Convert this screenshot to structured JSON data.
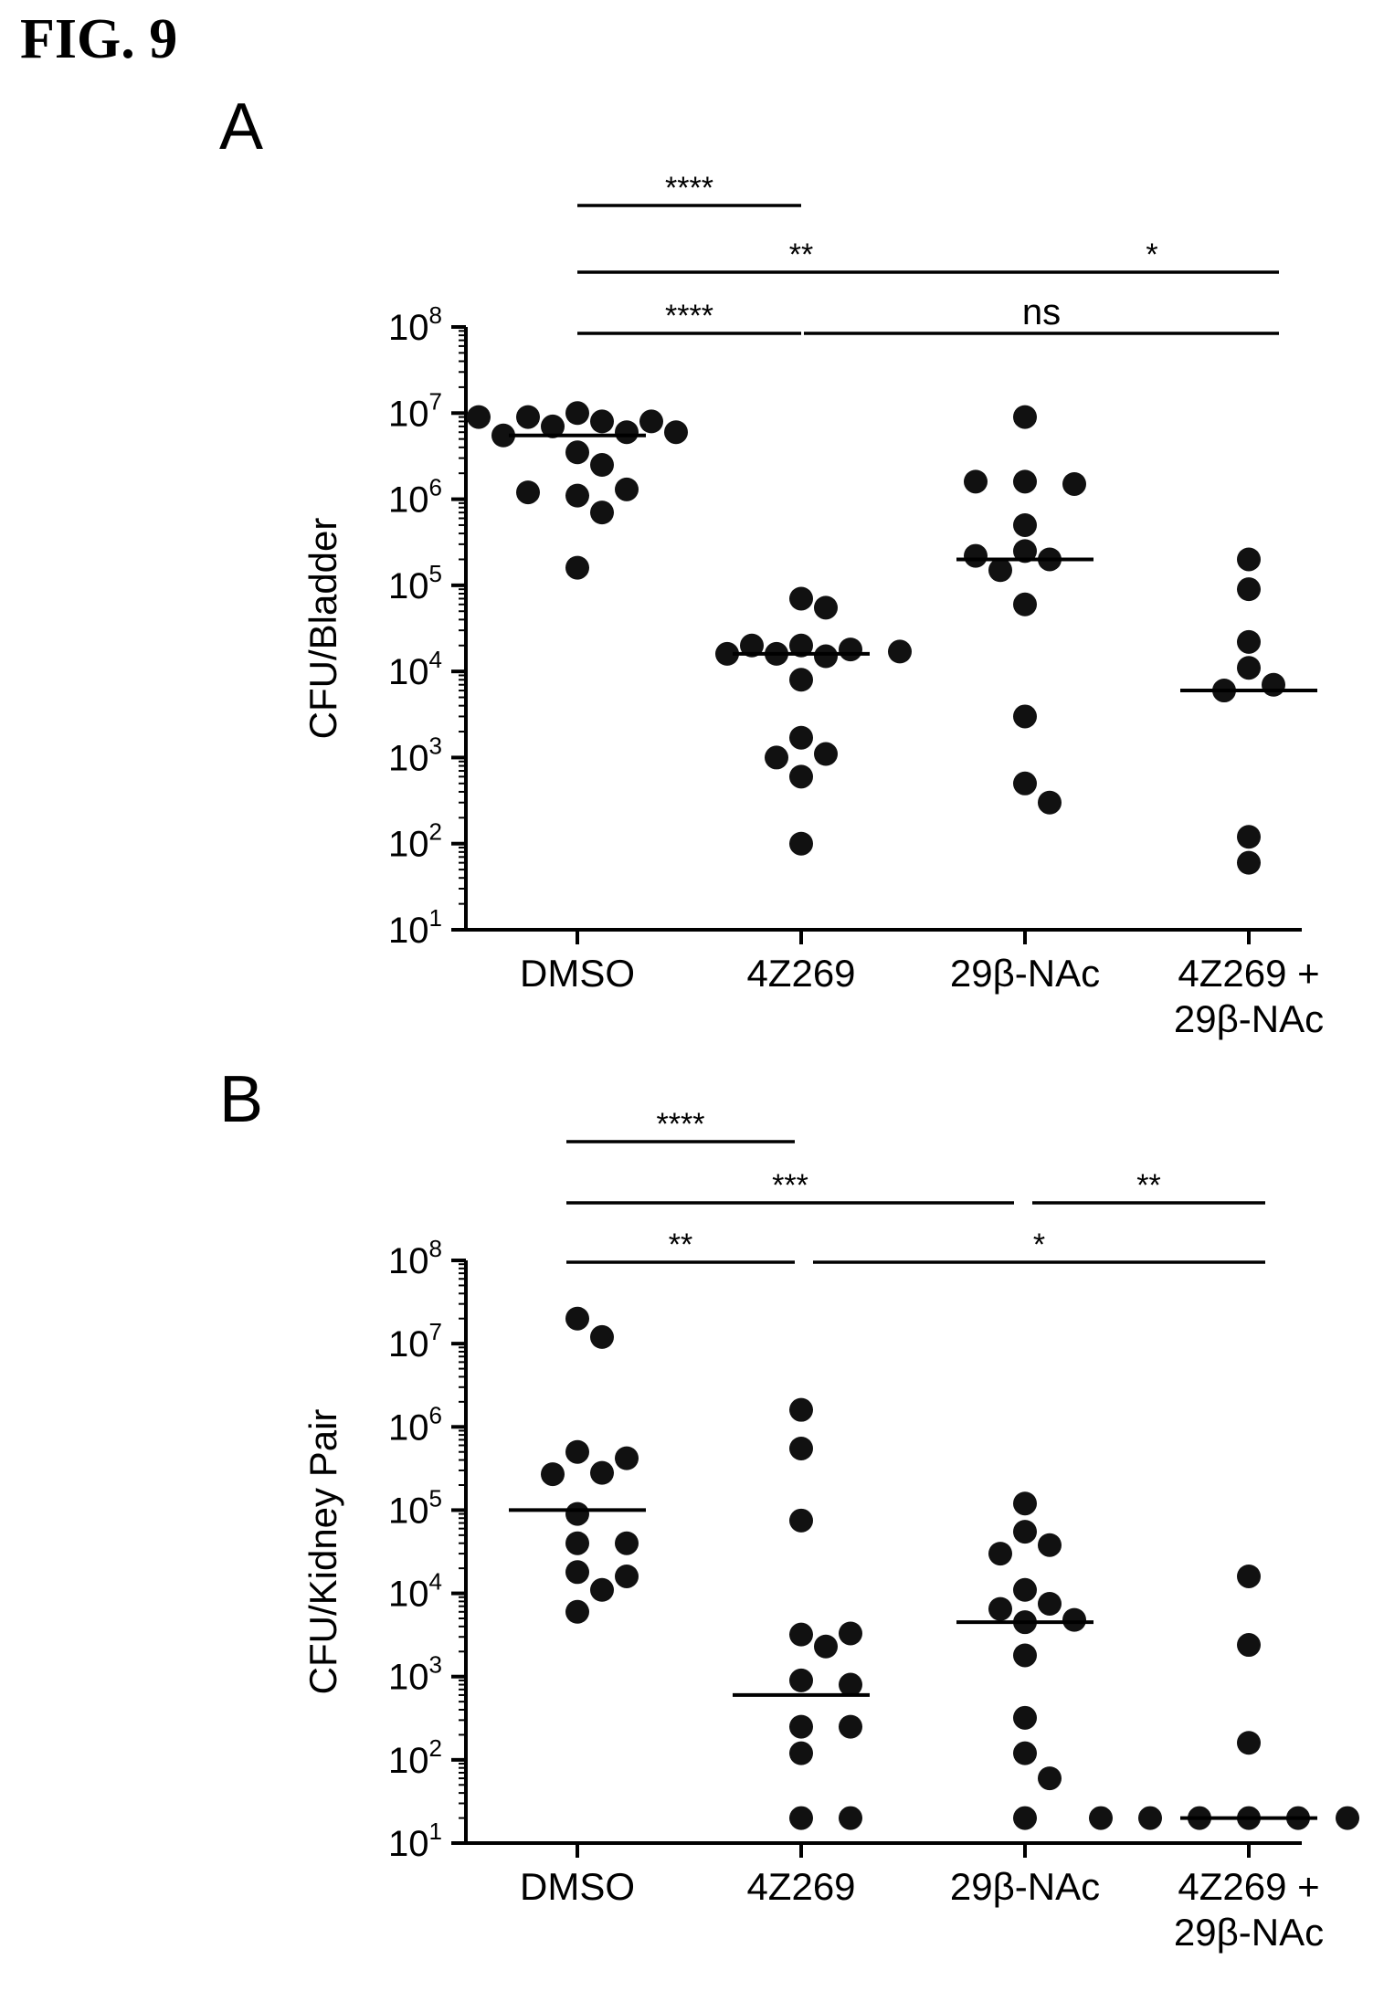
{
  "figure": {
    "title": "FIG. 9"
  },
  "chart_data": [
    {
      "type": "scatter",
      "panel_label": "A",
      "ylabel": "CFU/Bladder",
      "yscale": "log",
      "ylim": [
        10,
        100000000
      ],
      "yticks": [
        {
          "base": "10",
          "exp": "1"
        },
        {
          "base": "10",
          "exp": "2"
        },
        {
          "base": "10",
          "exp": "3"
        },
        {
          "base": "10",
          "exp": "4"
        },
        {
          "base": "10",
          "exp": "5"
        },
        {
          "base": "10",
          "exp": "6"
        },
        {
          "base": "10",
          "exp": "7"
        },
        {
          "base": "10",
          "exp": "8"
        }
      ],
      "categories": [
        [
          "DMSO"
        ],
        [
          "4Z269"
        ],
        [
          "29β-NAc"
        ],
        [
          "4Z269 +",
          "29β-NAc"
        ]
      ],
      "series": [
        {
          "category": "DMSO",
          "median": 5500000,
          "values": [
            10000000,
            8000000,
            9000000,
            7000000,
            8000000,
            9000000,
            6000000,
            5500000,
            6000000,
            3500000,
            2500000,
            1100000,
            1300000,
            1200000,
            700000,
            160000
          ]
        },
        {
          "category": "4Z269",
          "median": 16000,
          "values": [
            70000,
            55000,
            20000,
            18000,
            16000,
            20000,
            15000,
            17000,
            16000,
            8000,
            1700,
            1100,
            1000,
            600,
            100
          ]
        },
        {
          "category": "29β-NAc",
          "median": 200000,
          "values": [
            9000000,
            1600000,
            1500000,
            1600000,
            500000,
            250000,
            200000,
            220000,
            150000,
            60000,
            3000,
            500,
            300
          ]
        },
        {
          "category": "4Z269 + 29β-NAc",
          "median": 6000,
          "values": [
            200000,
            90000,
            22000,
            11000,
            7000,
            6000,
            120,
            60
          ]
        }
      ],
      "significance": [
        {
          "text": "****",
          "from": 0,
          "to": 3,
          "row": 3
        },
        {
          "text": "**",
          "from": 0,
          "to": 2,
          "row": 2
        },
        {
          "text": "*",
          "from": 2,
          "to": 3,
          "row": 2
        },
        {
          "text": "****",
          "from": 0,
          "to": 1,
          "row": 1
        },
        {
          "text": "ns",
          "from": 1,
          "to": 3,
          "row": 1
        }
      ]
    },
    {
      "type": "scatter",
      "panel_label": "B",
      "ylabel": "CFU/Kidney Pair",
      "yscale": "log",
      "ylim": [
        10,
        100000000
      ],
      "yticks": [
        {
          "base": "10",
          "exp": "1"
        },
        {
          "base": "10",
          "exp": "2"
        },
        {
          "base": "10",
          "exp": "3"
        },
        {
          "base": "10",
          "exp": "4"
        },
        {
          "base": "10",
          "exp": "5"
        },
        {
          "base": "10",
          "exp": "6"
        },
        {
          "base": "10",
          "exp": "7"
        },
        {
          "base": "10",
          "exp": "8"
        }
      ],
      "categories": [
        [
          "DMSO"
        ],
        [
          "4Z269"
        ],
        [
          "29β-NAc"
        ],
        [
          "4Z269 +",
          "29β-NAc"
        ]
      ],
      "series": [
        {
          "category": "DMSO",
          "median": 100000,
          "values": [
            20000000,
            12000000,
            500000,
            420000,
            280000,
            270000,
            90000,
            40000,
            40000,
            18000,
            16000,
            11000,
            6000
          ]
        },
        {
          "category": "4Z269",
          "median": 600,
          "values": [
            1600000,
            550000,
            75000,
            3200,
            3300,
            2300,
            900,
            800,
            250,
            250,
            120,
            20,
            20
          ]
        },
        {
          "category": "29β-NAc",
          "median": 4500,
          "values": [
            120000,
            55000,
            38000,
            30000,
            11000,
            7500,
            6500,
            4500,
            4800,
            1800,
            320,
            120,
            60,
            20
          ]
        },
        {
          "category": "4Z269 + 29β-NAc",
          "median": 20,
          "values": [
            16000,
            2400,
            160,
            20,
            20,
            20,
            20,
            20,
            20,
            20
          ]
        }
      ],
      "significance": [
        {
          "text": "****",
          "from": 0,
          "to": 3,
          "row": 3
        },
        {
          "text": "***",
          "from": 0,
          "to": 2,
          "row": 2
        },
        {
          "text": "**",
          "from": 2,
          "to": 3,
          "row": 2
        },
        {
          "text": "**",
          "from": 0,
          "to": 1,
          "row": 1
        },
        {
          "text": "*",
          "from": 1,
          "to": 3,
          "row": 1
        }
      ]
    }
  ]
}
